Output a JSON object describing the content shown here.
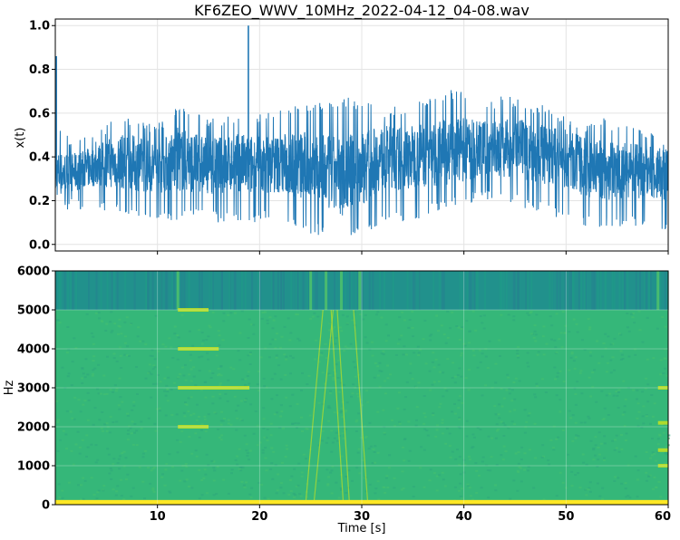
{
  "chart_data": [
    {
      "type": "line",
      "title": "KF6ZEO_WWV_10MHz_2022-04-12_04-08.wav",
      "ylabel": "x(t)",
      "xlim": [
        0,
        60
      ],
      "ylim": [
        -0.03,
        1.03
      ],
      "grid": true,
      "xticks": [
        "10",
        "20",
        "30",
        "40",
        "50",
        "60"
      ],
      "yticks": [
        "0.0",
        "0.2",
        "0.4",
        "0.6",
        "0.8",
        "1.0"
      ],
      "color": "#1f77b4",
      "series": [
        {
          "x": [
            0,
            2,
            4,
            6,
            8,
            10,
            12,
            14,
            16,
            18,
            19,
            20,
            22,
            24,
            26,
            28,
            30,
            32,
            34,
            36,
            38,
            40,
            42,
            44,
            46,
            48,
            50,
            52,
            54,
            56,
            58,
            60
          ],
          "values": [
            0.32,
            0.33,
            0.36,
            0.38,
            0.37,
            0.35,
            0.39,
            0.37,
            0.36,
            0.37,
            0.36,
            0.36,
            0.37,
            0.36,
            0.33,
            0.31,
            0.35,
            0.4,
            0.39,
            0.41,
            0.42,
            0.43,
            0.44,
            0.44,
            0.43,
            0.41,
            0.39,
            0.35,
            0.34,
            0.34,
            0.33,
            0.32
          ],
          "upper": [
            0.55,
            0.48,
            0.5,
            0.6,
            0.58,
            0.55,
            0.64,
            0.6,
            0.58,
            0.6,
            0.62,
            0.6,
            0.62,
            0.64,
            0.66,
            0.68,
            0.66,
            0.62,
            0.64,
            0.66,
            0.7,
            0.72,
            0.66,
            0.68,
            0.66,
            0.64,
            0.6,
            0.56,
            0.58,
            0.54,
            0.52,
            0.5
          ],
          "lower": [
            0.16,
            0.16,
            0.16,
            0.14,
            0.12,
            0.12,
            0.1,
            0.12,
            0.1,
            0.1,
            0.1,
            0.1,
            0.12,
            0.06,
            0.04,
            0.02,
            0.04,
            0.1,
            0.1,
            0.12,
            0.16,
            0.18,
            0.2,
            0.2,
            0.16,
            0.14,
            0.1,
            0.08,
            0.08,
            0.08,
            0.08,
            0.04
          ]
        }
      ],
      "spikes": [
        {
          "x": 0.1,
          "y": 0.86
        },
        {
          "x": 18.9,
          "y": 1.0
        }
      ]
    },
    {
      "type": "heatmap",
      "ylabel": "Hz",
      "xlabel": "Time [s]",
      "xlim": [
        0,
        60
      ],
      "ylim": [
        0,
        6000
      ],
      "xticks": [
        "10",
        "20",
        "30",
        "40",
        "50",
        "60"
      ],
      "yticks": [
        "0",
        "1000",
        "2000",
        "3000",
        "4000",
        "5000",
        "6000"
      ],
      "colors": {
        "background": "#35b779",
        "upper_band": "#21918c",
        "low_band": "#fde725",
        "tone": "#bddf26"
      },
      "upper_band_hz": [
        5000,
        6000
      ],
      "low_band_hz": [
        0,
        120
      ],
      "tones": [
        {
          "hz": 5000,
          "x_start": 12,
          "x_end": 15
        },
        {
          "hz": 4000,
          "x_start": 12,
          "x_end": 16
        },
        {
          "hz": 3000,
          "x_start": 12,
          "x_end": 19
        },
        {
          "hz": 2000,
          "x_start": 12,
          "x_end": 15
        },
        {
          "hz": 3000,
          "x_start": 59,
          "x_end": 60
        },
        {
          "hz": 2100,
          "x_start": 59,
          "x_end": 60
        },
        {
          "hz": 1000,
          "x_start": 59,
          "x_end": 60
        },
        {
          "hz": 1400,
          "x_start": 59,
          "x_end": 60
        }
      ],
      "vertical_markers": [
        12,
        25,
        26.5,
        28,
        29.8,
        59
      ],
      "sweeps": [
        {
          "x0": 24.5,
          "y0": 0,
          "x1": 26.2,
          "y1": 5000
        },
        {
          "x0": 25.3,
          "y0": 0,
          "x1": 27.2,
          "y1": 5000
        },
        {
          "x0": 27.0,
          "y0": 5000,
          "x1": 28.2,
          "y1": 0
        },
        {
          "x0": 27.6,
          "y0": 5000,
          "x1": 28.8,
          "y1": 0
        },
        {
          "x0": 29.2,
          "y0": 5000,
          "x1": 30.6,
          "y1": 0
        }
      ]
    }
  ]
}
